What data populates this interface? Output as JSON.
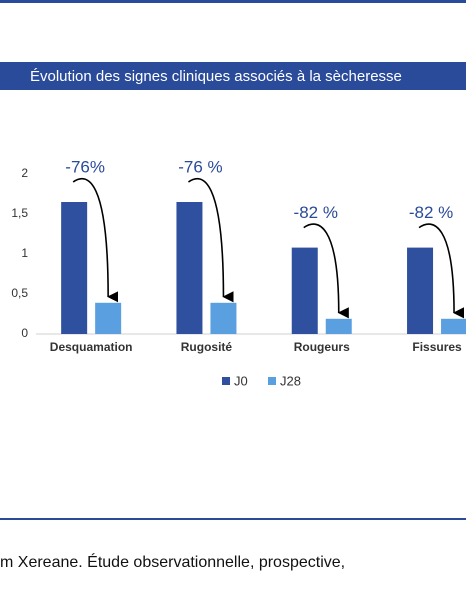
{
  "chart_data": {
    "type": "bar",
    "title": "Évolution des signes cliniques associés à la sècheresse",
    "categories": [
      "Desquamation",
      "Rugosité",
      "Rougeurs",
      "Fissures"
    ],
    "series": [
      {
        "name": "J0",
        "color": "#2f4f9f",
        "values": [
          1.65,
          1.65,
          1.08,
          1.08
        ]
      },
      {
        "name": "J28",
        "color": "#5a9fe0",
        "values": [
          0.39,
          0.39,
          0.19,
          0.19
        ]
      }
    ],
    "ylim": [
      0,
      2
    ],
    "yticks": [
      0,
      {
        "value": 0.5,
        "label": "0,5"
      },
      1,
      {
        "value": 1.5,
        "label": "1,5"
      },
      2
    ],
    "annotations": [
      "-76%",
      "-76 %",
      "-82 %",
      "-82 %"
    ],
    "legend": "bottom"
  },
  "footer": {
    "text": "m Xereane. Étude observationnelle, prospective,"
  }
}
